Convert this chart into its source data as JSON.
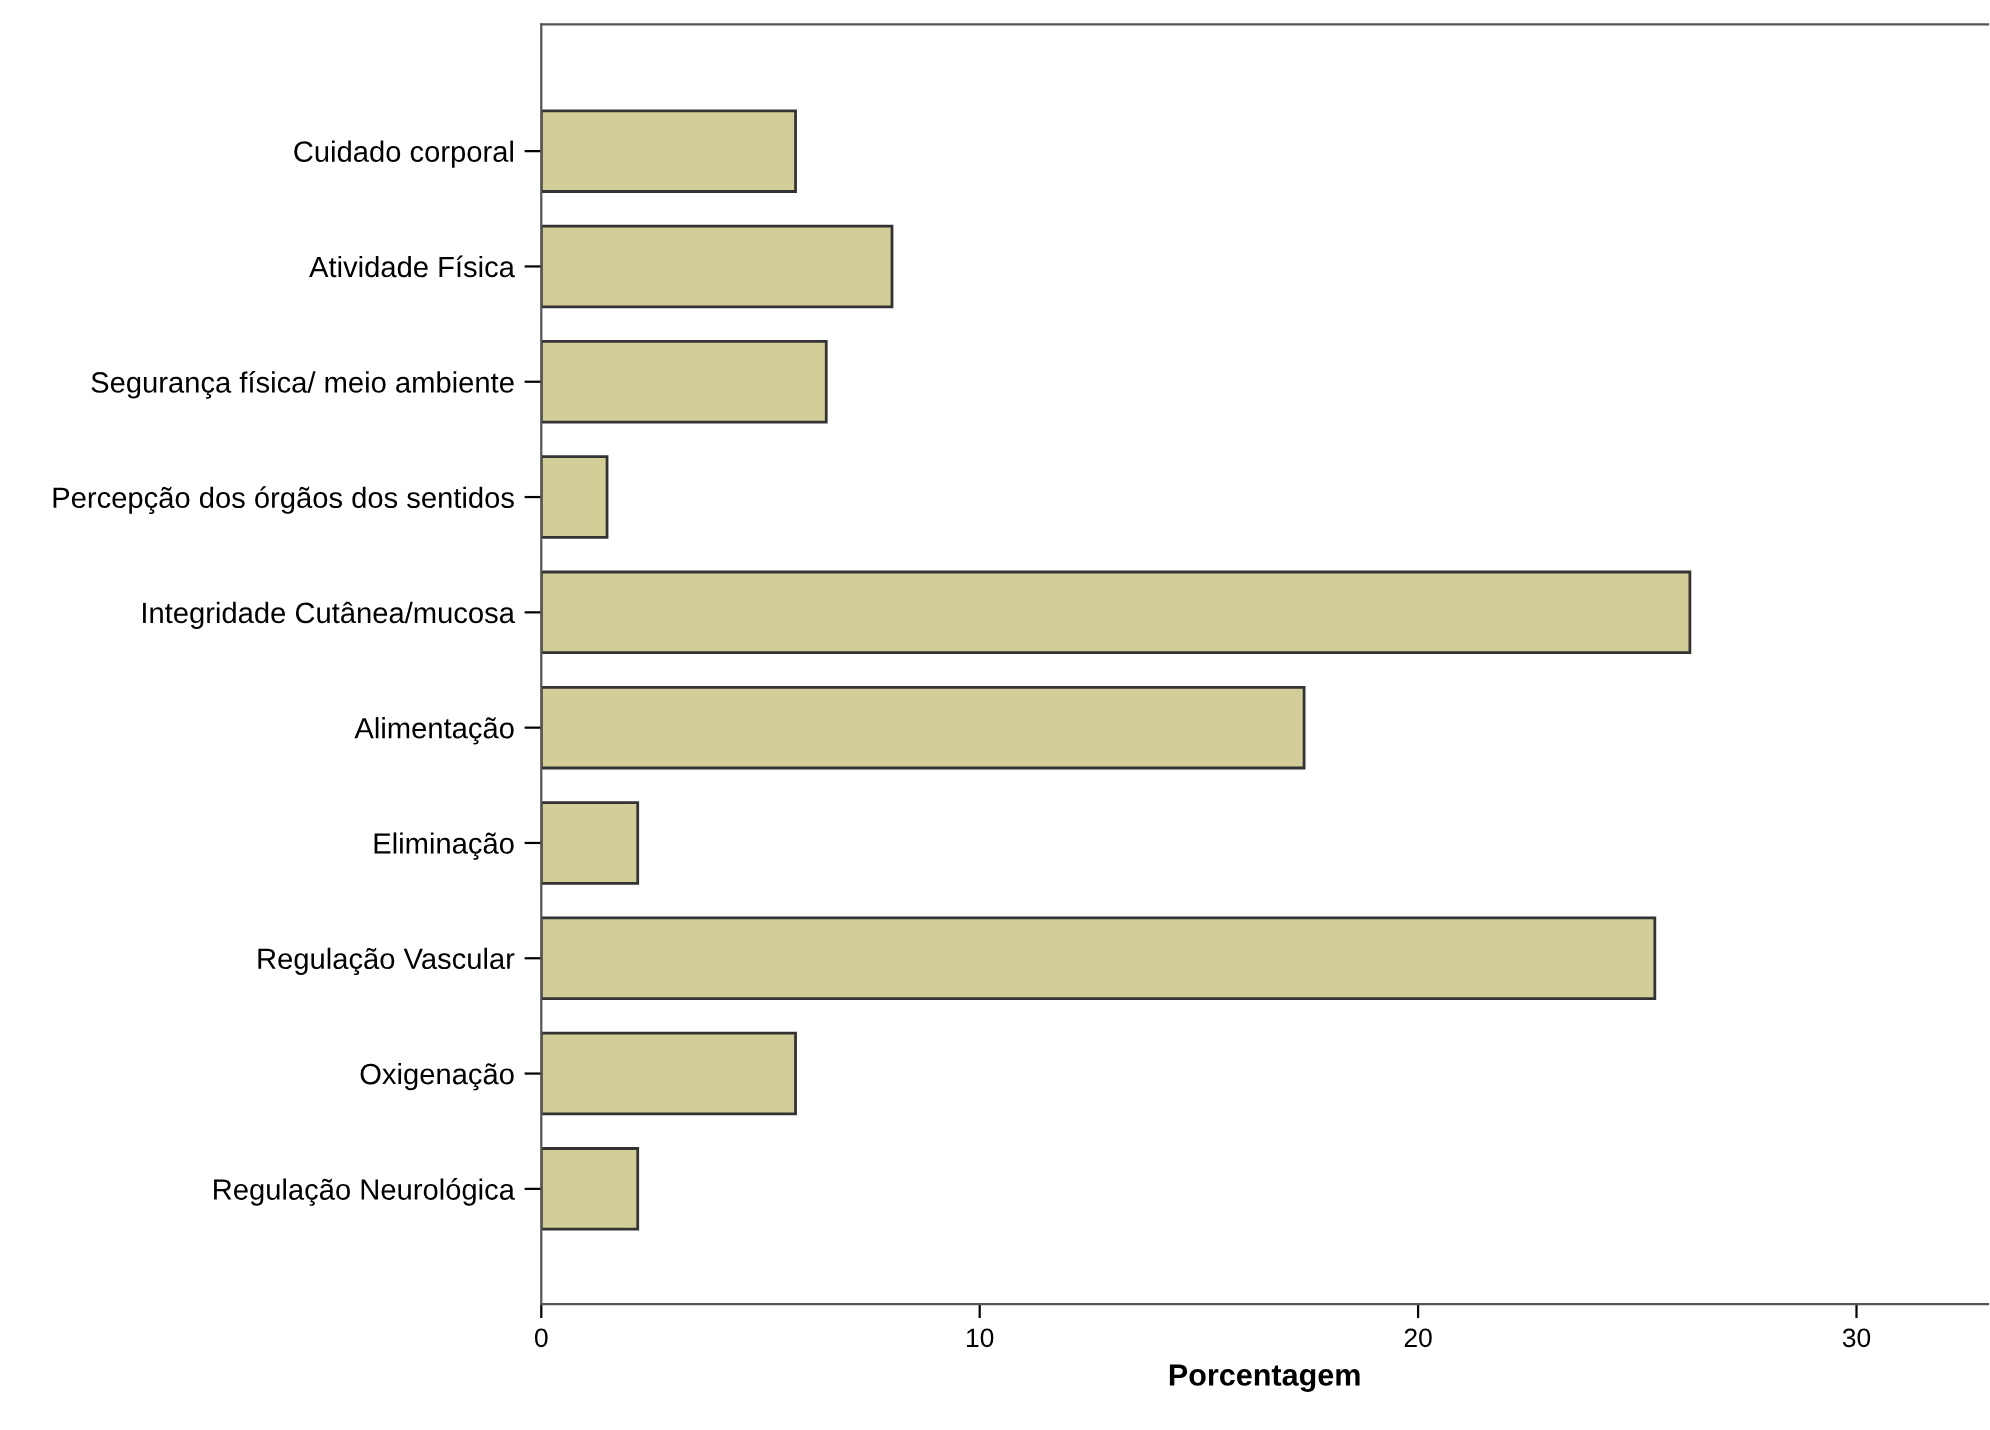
{
  "chart_data": {
    "type": "bar",
    "orientation": "horizontal",
    "xlabel": "Porcentagem",
    "categories": [
      "Cuidado corporal",
      "Atividade Física",
      "Segurança física/ meio ambiente",
      "Percepção dos órgãos dos sentidos",
      "Integridade Cutânea/mucosa",
      "Alimentação",
      "Eliminação",
      "Regulação Vascular",
      "Oxigenação",
      "Regulação Neurológica"
    ],
    "values": [
      5.8,
      8.0,
      6.5,
      1.5,
      26.2,
      17.4,
      2.2,
      25.4,
      5.8,
      2.2
    ],
    "color": "#d3ce97",
    "xlim": [
      0,
      33
    ],
    "xticks": [
      0,
      10,
      20,
      30
    ],
    "grid": false
  }
}
